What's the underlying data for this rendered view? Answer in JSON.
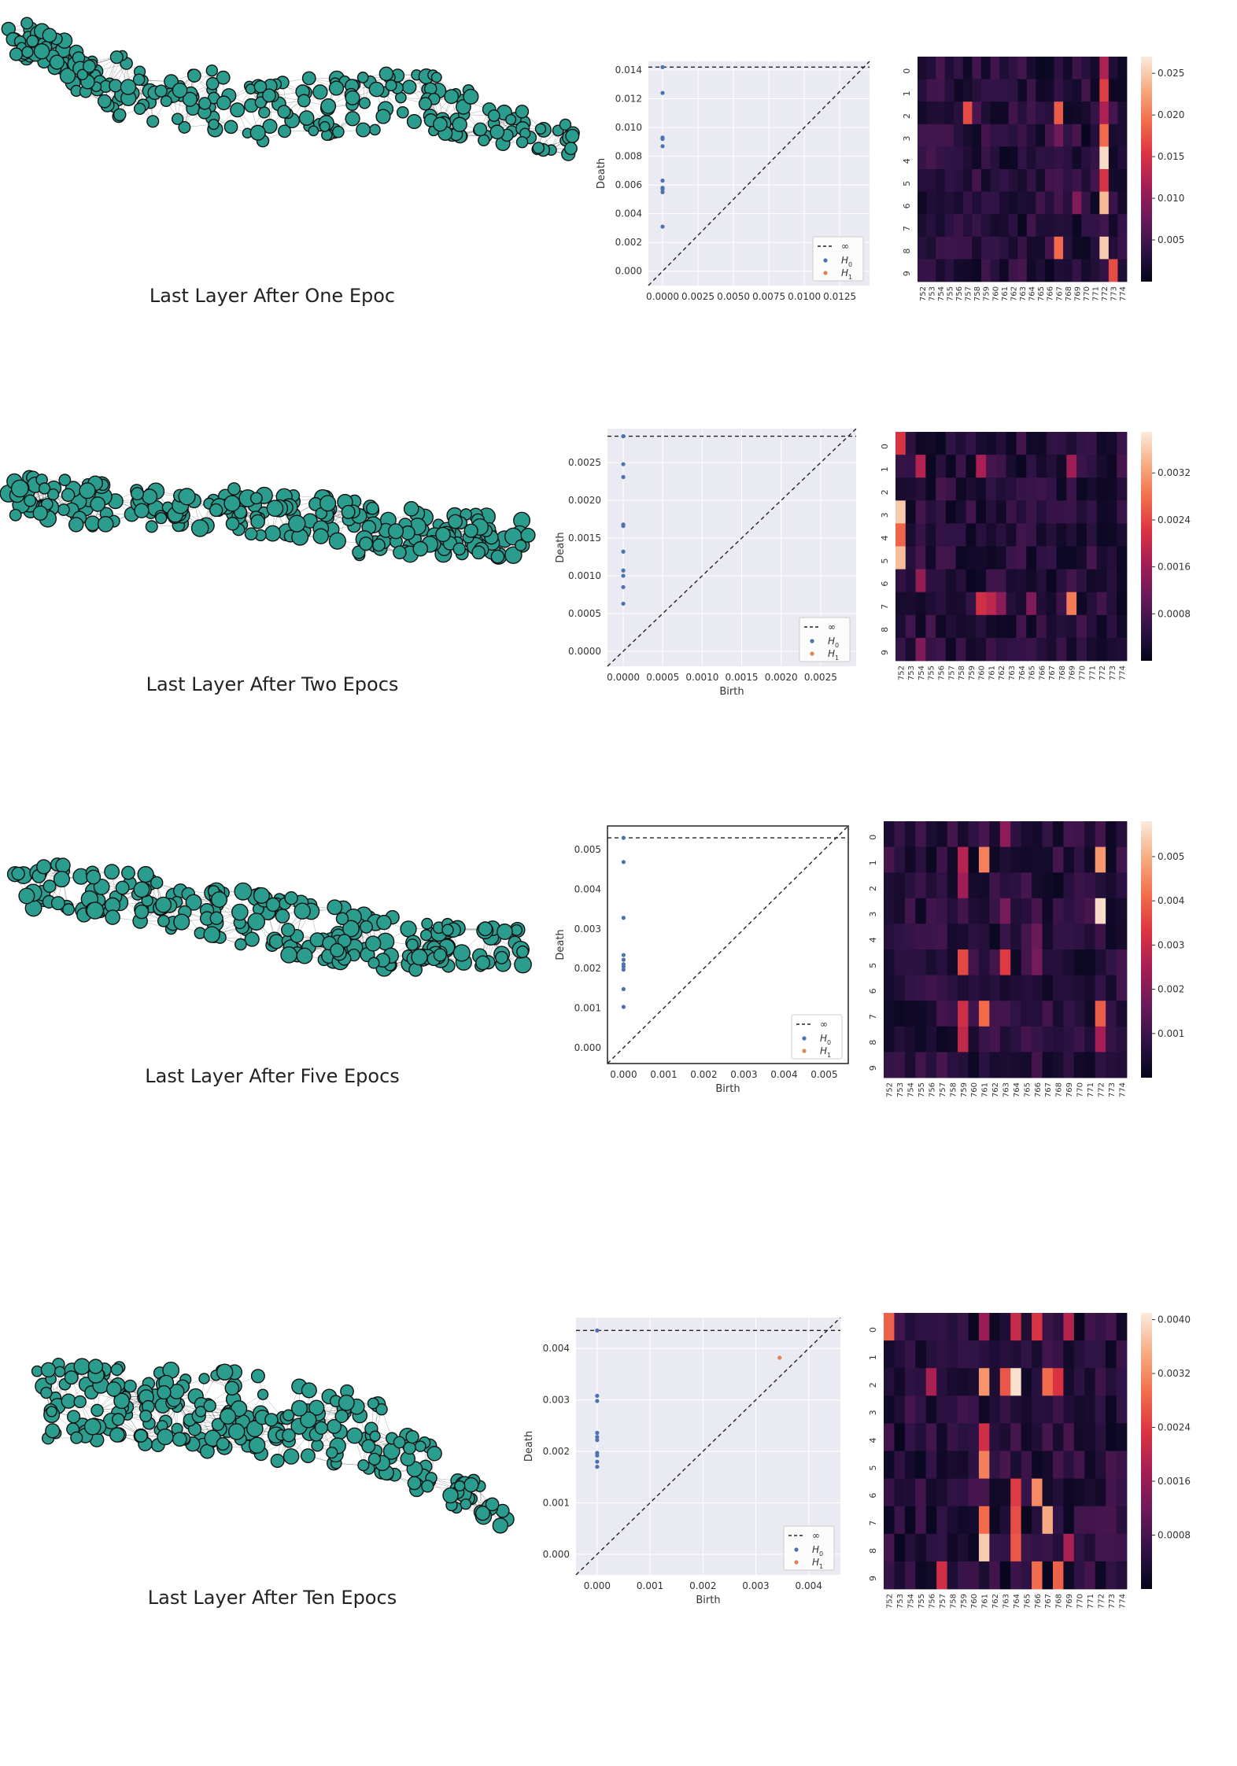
{
  "captions": [
    "Last Layer After One Epoc",
    "Last Layer After Two Epocs",
    "Last Layer After Five Epocs",
    "Last Layer After Ten Epocs"
  ],
  "legend": {
    "inf": "∞",
    "h0": "H",
    "h0_sub": "0",
    "h1": "H",
    "h1_sub": "1"
  },
  "colors": {
    "node": "#2a9d8f",
    "edge": "#222222",
    "h0": "#4c72b0",
    "h1": "#dd8452",
    "seaborn_bg": "#eaeaf2"
  },
  "chart_data": [
    {
      "type": "scatter",
      "title": "",
      "xlabel": "",
      "ylabel": "Death",
      "xlim": [
        -0.001,
        0.0146
      ],
      "ylim": [
        -0.001,
        0.0146
      ],
      "xticks": [
        "0.0000",
        "0.0025",
        "0.0050",
        "0.0075",
        "0.0100",
        "0.0125"
      ],
      "xtick_values": [
        0,
        0.0025,
        0.005,
        0.0075,
        0.01,
        0.0125
      ],
      "yticks": [
        "0.000",
        "0.002",
        "0.004",
        "0.006",
        "0.008",
        "0.010",
        "0.012",
        "0.014"
      ],
      "ytick_values": [
        0,
        0.002,
        0.004,
        0.006,
        0.008,
        0.01,
        0.012,
        0.014
      ],
      "style": "seaborn",
      "infinity_line": 0.0142,
      "series": [
        {
          "name": "H0",
          "x": [
            0,
            0,
            0,
            0,
            0,
            0,
            0,
            0,
            0,
            0
          ],
          "y": [
            0.0031,
            0.0055,
            0.0057,
            0.0058,
            0.0063,
            0.0087,
            0.0092,
            0.0093,
            0.0124,
            0.0142
          ]
        },
        {
          "name": "H1",
          "x": [],
          "y": []
        }
      ]
    },
    {
      "type": "heatmap",
      "rows": [
        "0",
        "1",
        "2",
        "3",
        "4",
        "5",
        "6",
        "7",
        "8",
        "9"
      ],
      "columns": [
        "752",
        "753",
        "754",
        "755",
        "756",
        "757",
        "758",
        "759",
        "760",
        "761",
        "762",
        "763",
        "764",
        "765",
        "766",
        "767",
        "768",
        "769",
        "770",
        "771",
        "772",
        "773",
        "774"
      ],
      "colorbar_ticks": [
        "0.005",
        "0.010",
        "0.015",
        "0.020",
        "0.025"
      ],
      "colorbar_tick_values": [
        0.005,
        0.01,
        0.015,
        0.02,
        0.025
      ],
      "vmin": 0,
      "vmax": 0.027,
      "hot": [
        {
          "r": 1,
          "c": 20,
          "v": 0.016
        },
        {
          "r": 2,
          "c": 5,
          "v": 0.017
        },
        {
          "r": 2,
          "c": 15,
          "v": 0.018
        },
        {
          "r": 2,
          "c": 20,
          "v": 0.012
        },
        {
          "r": 3,
          "c": 20,
          "v": 0.019
        },
        {
          "r": 4,
          "c": 20,
          "v": 0.026
        },
        {
          "r": 5,
          "c": 20,
          "v": 0.015
        },
        {
          "r": 6,
          "c": 20,
          "v": 0.024
        },
        {
          "r": 8,
          "c": 15,
          "v": 0.019
        },
        {
          "r": 8,
          "c": 20,
          "v": 0.025
        },
        {
          "r": 9,
          "c": 21,
          "v": 0.017
        },
        {
          "r": 0,
          "c": 20,
          "v": 0.012
        },
        {
          "r": 3,
          "c": 15,
          "v": 0.008
        },
        {
          "r": 6,
          "c": 17,
          "v": 0.009
        }
      ]
    },
    {
      "type": "scatter",
      "title": "",
      "xlabel": "Birth",
      "ylabel": "Death",
      "xlim": [
        -0.0002,
        0.00295
      ],
      "ylim": [
        -0.0002,
        0.00295
      ],
      "xticks": [
        "0.0000",
        "0.0005",
        "0.0010",
        "0.0015",
        "0.0020",
        "0.0025"
      ],
      "xtick_values": [
        0,
        0.0005,
        0.001,
        0.0015,
        0.002,
        0.0025
      ],
      "yticks": [
        "0.0000",
        "0.0005",
        "0.0010",
        "0.0015",
        "0.0020",
        "0.0025"
      ],
      "ytick_values": [
        0,
        0.0005,
        0.001,
        0.0015,
        0.002,
        0.0025
      ],
      "style": "seaborn",
      "infinity_line": 0.00285,
      "series": [
        {
          "name": "H0",
          "x": [
            0,
            0,
            0,
            0,
            0,
            0,
            0,
            0,
            0,
            0,
            0
          ],
          "y": [
            0.00063,
            0.00085,
            0.001,
            0.00107,
            0.00132,
            0.00166,
            0.00168,
            0.00231,
            0.00248,
            0.00285,
            0.00285
          ]
        },
        {
          "name": "H1",
          "x": [],
          "y": []
        }
      ]
    },
    {
      "type": "heatmap",
      "rows": [
        "0",
        "1",
        "2",
        "3",
        "4",
        "5",
        "6",
        "7",
        "8",
        "9"
      ],
      "columns": [
        "752",
        "753",
        "754",
        "755",
        "756",
        "757",
        "758",
        "759",
        "760",
        "761",
        "762",
        "763",
        "764",
        "765",
        "766",
        "767",
        "768",
        "769",
        "770",
        "771",
        "772",
        "773",
        "774"
      ],
      "colorbar_ticks": [
        "0.0008",
        "0.0016",
        "0.0024",
        "0.0032"
      ],
      "colorbar_tick_values": [
        0.0008,
        0.0016,
        0.0024,
        0.0032
      ],
      "vmin": 0,
      "vmax": 0.0039,
      "hot": [
        {
          "r": 0,
          "c": 0,
          "v": 0.0022
        },
        {
          "r": 1,
          "c": 2,
          "v": 0.0018
        },
        {
          "r": 1,
          "c": 8,
          "v": 0.0017
        },
        {
          "r": 1,
          "c": 17,
          "v": 0.0016
        },
        {
          "r": 3,
          "c": 0,
          "v": 0.0036
        },
        {
          "r": 4,
          "c": 0,
          "v": 0.0027
        },
        {
          "r": 5,
          "c": 0,
          "v": 0.0035
        },
        {
          "r": 6,
          "c": 2,
          "v": 0.0015
        },
        {
          "r": 7,
          "c": 8,
          "v": 0.0021
        },
        {
          "r": 7,
          "c": 9,
          "v": 0.0019
        },
        {
          "r": 7,
          "c": 17,
          "v": 0.0029
        },
        {
          "r": 7,
          "c": 10,
          "v": 0.0014
        },
        {
          "r": 9,
          "c": 2,
          "v": 0.0013
        },
        {
          "r": 7,
          "c": 13,
          "v": 0.0013
        }
      ]
    },
    {
      "type": "scatter",
      "title": "",
      "xlabel": "Birth",
      "ylabel": "Death",
      "xlim": [
        -0.0004,
        0.0056
      ],
      "ylim": [
        -0.0004,
        0.0056
      ],
      "xticks": [
        "0.000",
        "0.001",
        "0.002",
        "0.003",
        "0.004",
        "0.005"
      ],
      "xtick_values": [
        0,
        0.001,
        0.002,
        0.003,
        0.004,
        0.005
      ],
      "yticks": [
        "0.000",
        "0.001",
        "0.002",
        "0.003",
        "0.004",
        "0.005"
      ],
      "ytick_values": [
        0,
        0.001,
        0.002,
        0.003,
        0.004,
        0.005
      ],
      "style": "classic",
      "infinity_line": 0.0053,
      "series": [
        {
          "name": "H0",
          "x": [
            0,
            0,
            0,
            0,
            0,
            0,
            0,
            0,
            0,
            0
          ],
          "y": [
            0.00103,
            0.00148,
            0.00197,
            0.00205,
            0.00211,
            0.00222,
            0.00234,
            0.00328,
            0.00469,
            0.0053
          ]
        },
        {
          "name": "H1",
          "x": [],
          "y": []
        }
      ]
    },
    {
      "type": "heatmap",
      "rows": [
        "0",
        "1",
        "2",
        "3",
        "4",
        "5",
        "6",
        "7",
        "8",
        "9"
      ],
      "columns": [
        "752",
        "753",
        "754",
        "755",
        "756",
        "757",
        "758",
        "759",
        "760",
        "761",
        "762",
        "763",
        "764",
        "765",
        "766",
        "767",
        "768",
        "769",
        "770",
        "771",
        "772",
        "773",
        "774"
      ],
      "colorbar_ticks": [
        "0.001",
        "0.002",
        "0.003",
        "0.004",
        "0.005"
      ],
      "colorbar_tick_values": [
        0.001,
        0.002,
        0.003,
        0.004,
        0.005
      ],
      "vmin": 0,
      "vmax": 0.0058,
      "hot": [
        {
          "r": 1,
          "c": 7,
          "v": 0.0027
        },
        {
          "r": 1,
          "c": 9,
          "v": 0.0044
        },
        {
          "r": 1,
          "c": 20,
          "v": 0.0047
        },
        {
          "r": 0,
          "c": 11,
          "v": 0.0021
        },
        {
          "r": 2,
          "c": 7,
          "v": 0.0024
        },
        {
          "r": 3,
          "c": 20,
          "v": 0.0056
        },
        {
          "r": 5,
          "c": 7,
          "v": 0.0036
        },
        {
          "r": 5,
          "c": 11,
          "v": 0.0034
        },
        {
          "r": 7,
          "c": 7,
          "v": 0.0031
        },
        {
          "r": 7,
          "c": 9,
          "v": 0.0041
        },
        {
          "r": 7,
          "c": 20,
          "v": 0.0039
        },
        {
          "r": 8,
          "c": 7,
          "v": 0.0029
        },
        {
          "r": 8,
          "c": 20,
          "v": 0.0025
        },
        {
          "r": 4,
          "c": 14,
          "v": 0.0016
        },
        {
          "r": 5,
          "c": 14,
          "v": 0.0018
        },
        {
          "r": 3,
          "c": 11,
          "v": 0.0018
        }
      ]
    },
    {
      "type": "scatter",
      "title": "",
      "xlabel": "Birth",
      "ylabel": "Death",
      "xlim": [
        -0.0004,
        0.0046
      ],
      "ylim": [
        -0.0004,
        0.0046
      ],
      "xticks": [
        "0.000",
        "0.001",
        "0.002",
        "0.003",
        "0.004"
      ],
      "xtick_values": [
        0,
        0.001,
        0.002,
        0.003,
        0.004
      ],
      "yticks": [
        "0.000",
        "0.001",
        "0.002",
        "0.003",
        "0.004"
      ],
      "ytick_values": [
        0,
        0.001,
        0.002,
        0.003,
        0.004
      ],
      "style": "seaborn",
      "infinity_line": 0.00435,
      "series": [
        {
          "name": "H0",
          "x": [
            0,
            0,
            0,
            0,
            0,
            0,
            0,
            0,
            0,
            0
          ],
          "y": [
            0.0017,
            0.0018,
            0.00192,
            0.00197,
            0.00222,
            0.00228,
            0.00236,
            0.00298,
            0.00308,
            0.00435
          ]
        },
        {
          "name": "H1",
          "x": [
            0.00345
          ],
          "y": [
            0.00382
          ]
        }
      ]
    },
    {
      "type": "heatmap",
      "rows": [
        "0",
        "1",
        "2",
        "3",
        "4",
        "5",
        "6",
        "7",
        "8",
        "9"
      ],
      "columns": [
        "752",
        "753",
        "754",
        "755",
        "756",
        "757",
        "758",
        "759",
        "760",
        "761",
        "762",
        "763",
        "764",
        "765",
        "766",
        "767",
        "768",
        "769",
        "770",
        "771",
        "772",
        "773",
        "774"
      ],
      "colorbar_ticks": [
        "0.0008",
        "0.0016",
        "0.0024",
        "0.0032",
        "0.0040"
      ],
      "colorbar_tick_values": [
        0.0008,
        0.0016,
        0.0024,
        0.0032,
        0.004
      ],
      "vmin": 0,
      "vmax": 0.0041,
      "hot": [
        {
          "r": 0,
          "c": 0,
          "v": 0.0028
        },
        {
          "r": 0,
          "c": 12,
          "v": 0.0021
        },
        {
          "r": 0,
          "c": 14,
          "v": 0.0023
        },
        {
          "r": 0,
          "c": 17,
          "v": 0.0019
        },
        {
          "r": 2,
          "c": 4,
          "v": 0.0018
        },
        {
          "r": 2,
          "c": 9,
          "v": 0.0033
        },
        {
          "r": 2,
          "c": 11,
          "v": 0.0027
        },
        {
          "r": 2,
          "c": 12,
          "v": 0.004
        },
        {
          "r": 2,
          "c": 15,
          "v": 0.0029
        },
        {
          "r": 2,
          "c": 16,
          "v": 0.0023
        },
        {
          "r": 4,
          "c": 9,
          "v": 0.0022
        },
        {
          "r": 5,
          "c": 9,
          "v": 0.0031
        },
        {
          "r": 6,
          "c": 12,
          "v": 0.0024
        },
        {
          "r": 6,
          "c": 14,
          "v": 0.0032
        },
        {
          "r": 7,
          "c": 9,
          "v": 0.0029
        },
        {
          "r": 7,
          "c": 12,
          "v": 0.0026
        },
        {
          "r": 7,
          "c": 15,
          "v": 0.0035
        },
        {
          "r": 8,
          "c": 9,
          "v": 0.0038
        },
        {
          "r": 8,
          "c": 12,
          "v": 0.0027
        },
        {
          "r": 9,
          "c": 14,
          "v": 0.0029
        },
        {
          "r": 9,
          "c": 16,
          "v": 0.0028
        },
        {
          "r": 9,
          "c": 5,
          "v": 0.0022
        },
        {
          "r": 8,
          "c": 17,
          "v": 0.0018
        },
        {
          "r": 0,
          "c": 9,
          "v": 0.0016
        }
      ]
    }
  ]
}
